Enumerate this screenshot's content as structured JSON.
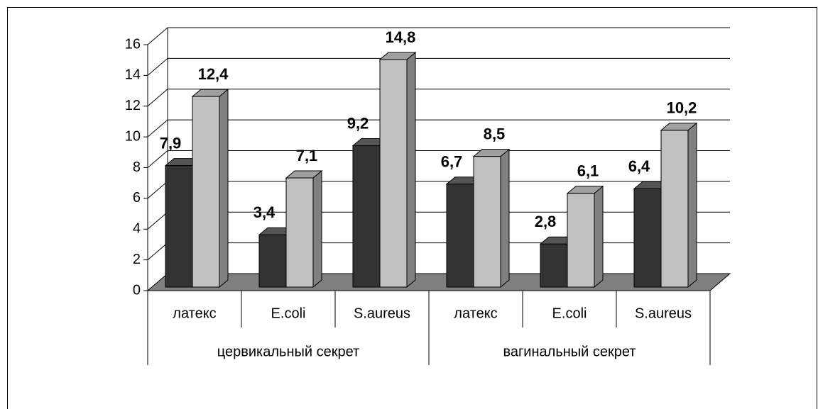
{
  "chart_data": {
    "type": "bar3d",
    "categories": [
      "латекс",
      "E.coli",
      "S.aureus",
      "латекс",
      "E.coli",
      "S.aureus"
    ],
    "groups": [
      "цервикальный секрет",
      "вагинальный секрет"
    ],
    "series": [
      {
        "color": "#333333",
        "values": [
          7.9,
          3.4,
          9.2,
          6.7,
          2.8,
          6.4
        ],
        "value_labels": [
          "7,9",
          "3,4",
          "9,2",
          "6,7",
          "2,8",
          "6,4"
        ]
      },
      {
        "color": "#c0c0c0",
        "values": [
          12.4,
          7.1,
          14.8,
          8.5,
          6.1,
          10.2
        ],
        "value_labels": [
          "12,4",
          "7,1",
          "14,8",
          "8,5",
          "6,1",
          "10,2"
        ]
      }
    ],
    "ylim": [
      0,
      16
    ],
    "yticks": [
      0,
      2,
      4,
      6,
      8,
      10,
      12,
      14,
      16
    ],
    "grid": true
  }
}
